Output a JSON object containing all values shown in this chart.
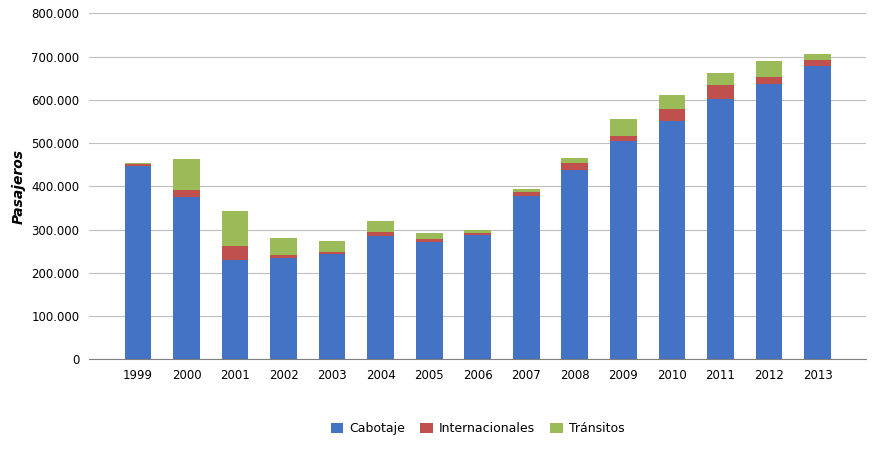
{
  "years": [
    1999,
    2000,
    2001,
    2002,
    2003,
    2004,
    2005,
    2006,
    2007,
    2008,
    2009,
    2010,
    2011,
    2012,
    2013
  ],
  "cabotaje": [
    448000,
    375000,
    230000,
    235000,
    243000,
    285000,
    272000,
    288000,
    378000,
    437000,
    505000,
    552000,
    603000,
    637000,
    678000
  ],
  "internacionales": [
    4000,
    16000,
    32000,
    6000,
    4000,
    10000,
    6000,
    5000,
    8000,
    18000,
    12000,
    28000,
    32000,
    17000,
    14000
  ],
  "transitos": [
    2000,
    73000,
    80000,
    39000,
    27000,
    24000,
    15000,
    5000,
    8000,
    10000,
    38000,
    32000,
    27000,
    35000,
    15000
  ],
  "color_cabotaje": "#4472C4",
  "color_internacionales": "#C0504D",
  "color_transitos": "#9BBB59",
  "ylabel": "Pasajeros",
  "ylim": [
    0,
    800000
  ],
  "ytick_step": 100000,
  "legend_labels": [
    "Cabotaje",
    "Internacionales",
    "Tránsitos"
  ],
  "background_color": "#FFFFFF",
  "grid_color": "#BFBFBF"
}
